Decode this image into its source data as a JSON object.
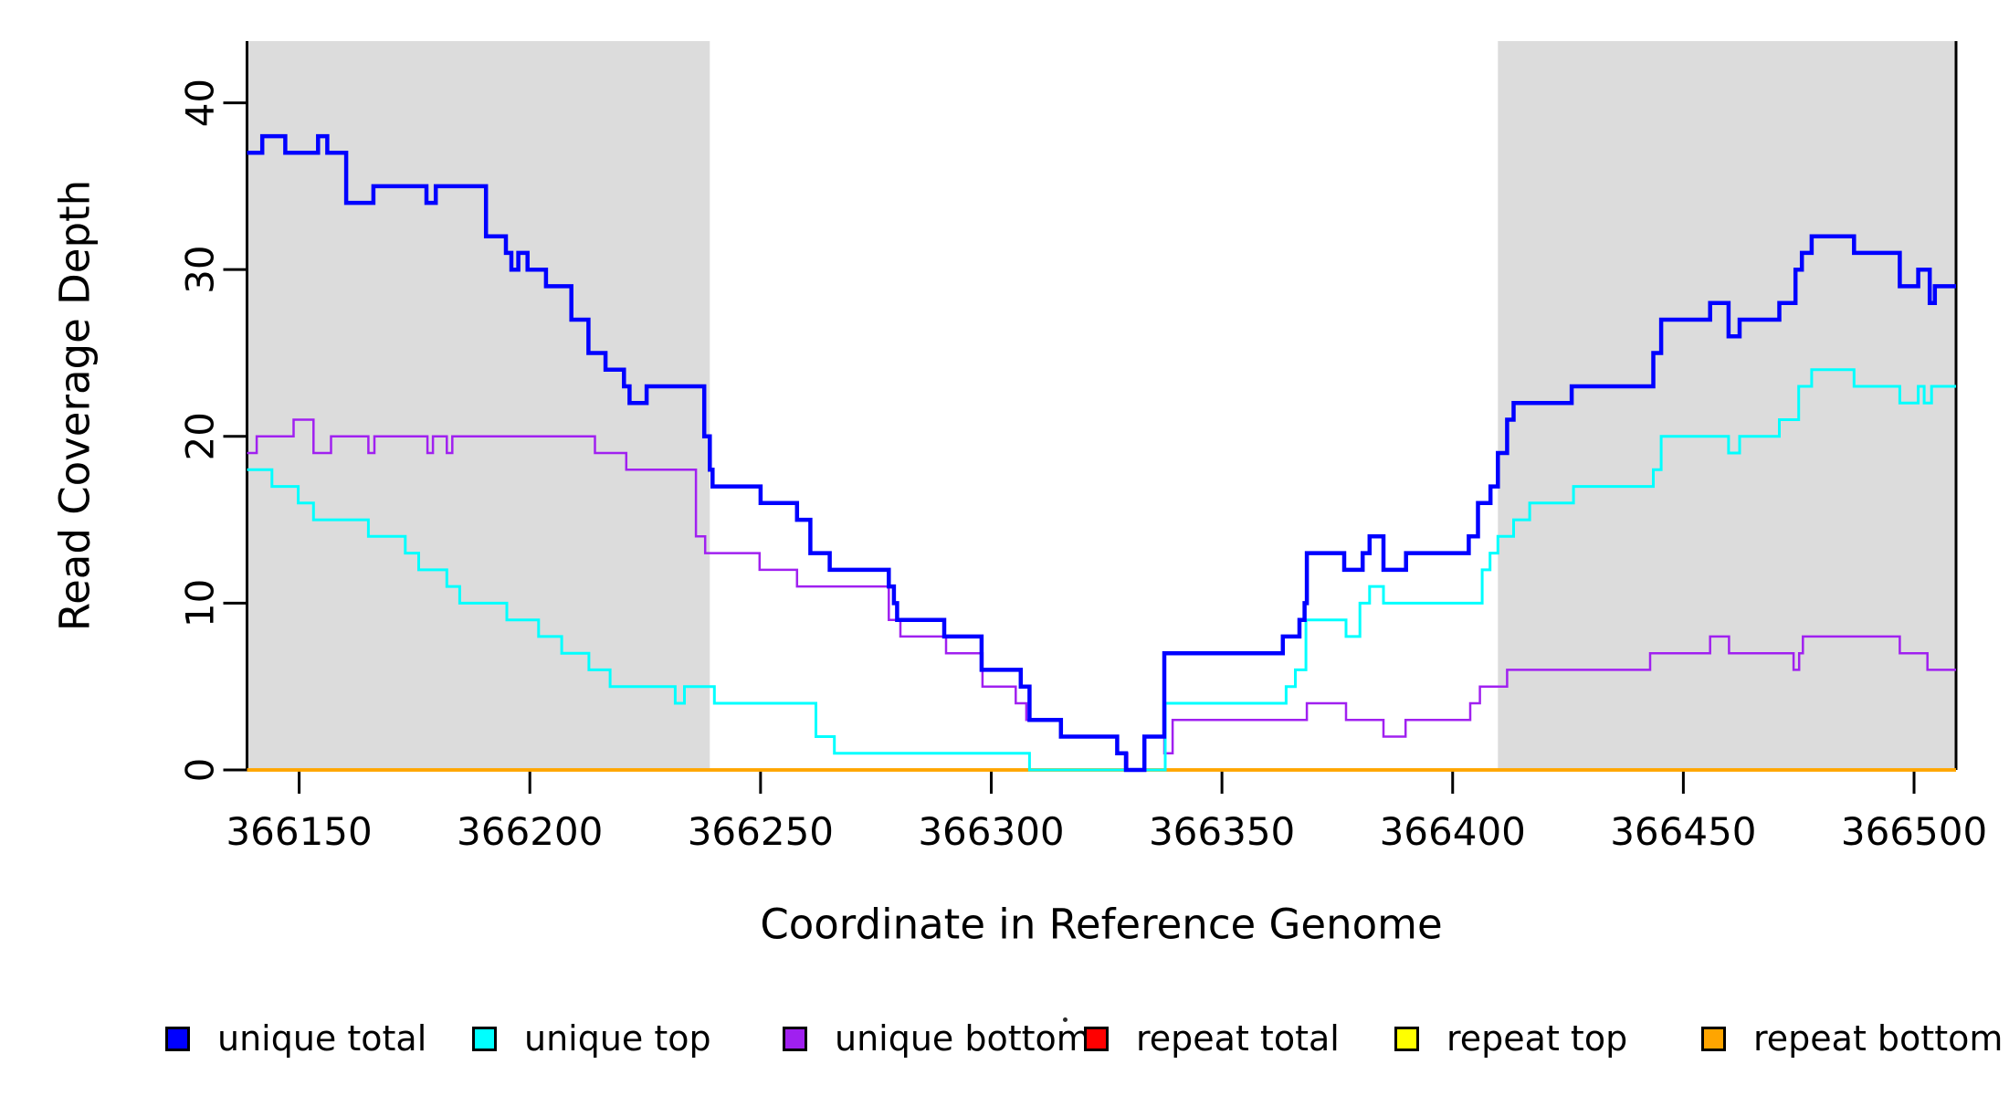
{
  "figure": {
    "xlabel": "Coordinate in Reference Genome",
    "ylabel": "Read Coverage Depth"
  },
  "legend": {
    "items": [
      {
        "label": "unique total",
        "color": "#0000FF"
      },
      {
        "label": "unique top",
        "color": "#00FFFF"
      },
      {
        "label": "unique bottom",
        "color": "#A020F0"
      },
      {
        "label": "repeat total",
        "color": "#FF0000"
      },
      {
        "label": "repeat top",
        "color": "#FFFF00"
      },
      {
        "label": "repeat bottom",
        "color": "#FFA500"
      }
    ],
    "stray_mark": "·"
  },
  "chart_data": {
    "type": "line",
    "style": "step",
    "title": "",
    "xlabel": "Coordinate in Reference Genome",
    "ylabel": "Read Coverage Depth",
    "xlim": [
      366138.7,
      366509.1
    ],
    "ylim": [
      0,
      43.7
    ],
    "x_ticks": [
      366150,
      366200,
      366250,
      366300,
      366350,
      366400,
      366450,
      366500
    ],
    "y_ticks": [
      0,
      10,
      20,
      30,
      40
    ],
    "grid": false,
    "legend_position": "bottom",
    "shaded_color": "#DCDCDC",
    "shaded_regions": [
      {
        "x0": 366138.7,
        "x1": 366239.0
      },
      {
        "x0": 366409.8,
        "x1": 366509.1
      }
    ],
    "draw_order": [
      3,
      4,
      5,
      2,
      1,
      0
    ],
    "series": [
      {
        "name": "unique total",
        "color": "#0000FF",
        "line_width": 4.5,
        "steps": [
          [
            366138.7,
            37
          ],
          [
            366142,
            38
          ],
          [
            366147,
            37
          ],
          [
            366154.1,
            38
          ],
          [
            366156.1,
            37
          ],
          [
            366160.2,
            34
          ],
          [
            366166.1,
            35
          ],
          [
            366177.6,
            34
          ],
          [
            366179.6,
            35
          ],
          [
            366190.5,
            32
          ],
          [
            366194.8,
            31
          ],
          [
            366196,
            30
          ],
          [
            366197.5,
            31
          ],
          [
            366199.5,
            30
          ],
          [
            366203.5,
            29
          ],
          [
            366209,
            27
          ],
          [
            366212.7,
            25
          ],
          [
            366216.4,
            24
          ],
          [
            366220.4,
            23
          ],
          [
            366221.6,
            22
          ],
          [
            366225.3,
            23
          ],
          [
            366237.8,
            20
          ],
          [
            366239,
            18
          ],
          [
            366239.6,
            17
          ],
          [
            366250,
            16
          ],
          [
            366257.9,
            15
          ],
          [
            366260.8,
            13
          ],
          [
            366265,
            12
          ],
          [
            366277.8,
            11
          ],
          [
            366278.9,
            10
          ],
          [
            366279.6,
            9
          ],
          [
            366289.8,
            8
          ],
          [
            366297.9,
            6
          ],
          [
            366306.4,
            5
          ],
          [
            366308.3,
            3
          ],
          [
            366315.1,
            2
          ],
          [
            366327.3,
            1
          ],
          [
            366329.2,
            0
          ],
          [
            366333.2,
            2
          ],
          [
            366337.5,
            7
          ],
          [
            366363.2,
            8
          ],
          [
            366366.8,
            9
          ],
          [
            366367.9,
            10
          ],
          [
            366368.4,
            13
          ],
          [
            366376.5,
            12
          ],
          [
            366380.5,
            13
          ],
          [
            366382,
            14
          ],
          [
            366385,
            12
          ],
          [
            366389.9,
            13
          ],
          [
            366403.5,
            14
          ],
          [
            366405.5,
            16
          ],
          [
            366408.2,
            17
          ],
          [
            366409.8,
            19
          ],
          [
            366411.8,
            21
          ],
          [
            366413.2,
            22
          ],
          [
            366425.8,
            23
          ],
          [
            366443.5,
            25
          ],
          [
            366445.2,
            27
          ],
          [
            366455.8,
            28
          ],
          [
            366459.8,
            26
          ],
          [
            366462.2,
            27
          ],
          [
            366470.8,
            28
          ],
          [
            366474.3,
            30
          ],
          [
            366475.7,
            31
          ],
          [
            366477.8,
            32
          ],
          [
            366487,
            31
          ],
          [
            366496.9,
            29
          ],
          [
            366500.9,
            30
          ],
          [
            366503.4,
            28
          ],
          [
            366504.5,
            29
          ]
        ]
      },
      {
        "name": "unique top",
        "color": "#00FFFF",
        "line_width": 3,
        "steps": [
          [
            366138.7,
            18
          ],
          [
            366144.1,
            17
          ],
          [
            366149.8,
            16
          ],
          [
            366153.1,
            15
          ],
          [
            366165,
            14
          ],
          [
            366173,
            13
          ],
          [
            366175.9,
            12
          ],
          [
            366182,
            11
          ],
          [
            366184.8,
            10
          ],
          [
            366195,
            9
          ],
          [
            366201.9,
            8
          ],
          [
            366206.9,
            7
          ],
          [
            366212.8,
            6
          ],
          [
            366217.4,
            5
          ],
          [
            366231.5,
            4
          ],
          [
            366233.5,
            5
          ],
          [
            366240,
            4
          ],
          [
            366262,
            2
          ],
          [
            366266,
            1
          ],
          [
            366308.3,
            0
          ],
          [
            366337.7,
            4
          ],
          [
            366363.9,
            5
          ],
          [
            366365.9,
            6
          ],
          [
            366368.2,
            9
          ],
          [
            366376.9,
            8
          ],
          [
            366379.9,
            10
          ],
          [
            366382,
            11
          ],
          [
            366385,
            10
          ],
          [
            366406.4,
            12
          ],
          [
            366408.1,
            13
          ],
          [
            366409.8,
            14
          ],
          [
            366413.2,
            15
          ],
          [
            366416.7,
            16
          ],
          [
            366426.2,
            17
          ],
          [
            366443.5,
            18
          ],
          [
            366445.2,
            20
          ],
          [
            366459.8,
            19
          ],
          [
            366462.2,
            20
          ],
          [
            366470.8,
            21
          ],
          [
            366475,
            23
          ],
          [
            366477.8,
            24
          ],
          [
            366487,
            23
          ],
          [
            366496.9,
            22
          ],
          [
            366500.9,
            23
          ],
          [
            366502.2,
            22
          ],
          [
            366503.8,
            23
          ]
        ]
      },
      {
        "name": "unique bottom",
        "color": "#A020F0",
        "line_width": 2.5,
        "steps": [
          [
            366138.7,
            19
          ],
          [
            366140.8,
            20
          ],
          [
            366148.8,
            21
          ],
          [
            366153.1,
            19
          ],
          [
            366156.9,
            20
          ],
          [
            366165,
            19
          ],
          [
            366166.3,
            20
          ],
          [
            366177.8,
            19
          ],
          [
            366179,
            20
          ],
          [
            366182,
            19
          ],
          [
            366183.2,
            20
          ],
          [
            366214.1,
            19
          ],
          [
            366220.9,
            18
          ],
          [
            366236,
            14
          ],
          [
            366238,
            13
          ],
          [
            366249.8,
            12
          ],
          [
            366257.9,
            11
          ],
          [
            366277.8,
            9
          ],
          [
            366280.3,
            8
          ],
          [
            366290.2,
            7
          ],
          [
            366298.1,
            5
          ],
          [
            366305.3,
            4
          ],
          [
            366307.6,
            3
          ],
          [
            366315.1,
            2
          ],
          [
            366327.3,
            1
          ],
          [
            366329.5,
            0
          ],
          [
            366333.2,
            2
          ],
          [
            366337.5,
            1
          ],
          [
            366339.3,
            3
          ],
          [
            366368.4,
            4
          ],
          [
            366376.9,
            3
          ],
          [
            366385,
            2
          ],
          [
            366389.8,
            3
          ],
          [
            366403.8,
            4
          ],
          [
            366405.9,
            5
          ],
          [
            366411.8,
            6
          ],
          [
            366442.8,
            7
          ],
          [
            366455.8,
            8
          ],
          [
            366459.9,
            7
          ],
          [
            366473.9,
            6
          ],
          [
            366475.1,
            7
          ],
          [
            366475.9,
            8
          ],
          [
            366496.9,
            7
          ],
          [
            366502.9,
            6
          ]
        ]
      },
      {
        "name": "repeat total",
        "color": "#FF0000",
        "line_width": 3.5,
        "steps": [
          [
            366138.7,
            0
          ]
        ]
      },
      {
        "name": "repeat top",
        "color": "#FFFF00",
        "line_width": 3.5,
        "steps": [
          [
            366138.7,
            0
          ]
        ]
      },
      {
        "name": "repeat bottom",
        "color": "#FFA500",
        "line_width": 3.5,
        "steps": [
          [
            366138.7,
            0
          ]
        ]
      }
    ]
  }
}
